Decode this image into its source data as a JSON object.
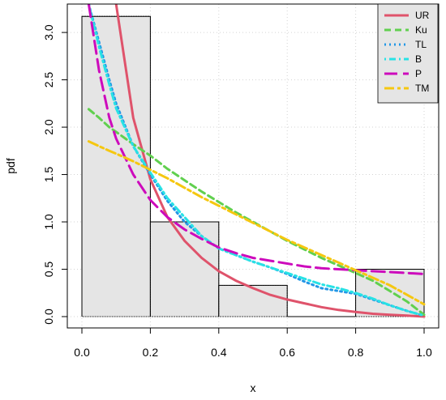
{
  "chart_data": {
    "type": "line",
    "title": "",
    "xlabel": "x",
    "ylabel": "pdf",
    "xlim": [
      0,
      1
    ],
    "ylim": [
      0,
      3.3
    ],
    "x_ticks": [
      0.0,
      0.2,
      0.4,
      0.6,
      0.8,
      1.0
    ],
    "x_tick_labels": [
      "0.0",
      "0.2",
      "0.4",
      "0.6",
      "0.8",
      "1.0"
    ],
    "y_ticks": [
      0.0,
      0.5,
      1.0,
      1.5,
      2.0,
      2.5,
      3.0
    ],
    "y_tick_labels": [
      "0.0",
      "0.5",
      "1.0",
      "1.5",
      "2.0",
      "2.5",
      "3.0"
    ],
    "grid": true,
    "legend_position": "top-right",
    "histogram": {
      "bins": [
        0.0,
        0.2,
        0.4,
        0.6,
        0.8,
        1.0
      ],
      "densities": [
        3.17,
        1.0,
        0.33,
        0.0,
        0.5
      ],
      "fill": "#e5e5e5"
    },
    "x": [
      0.02,
      0.05,
      0.08,
      0.1,
      0.15,
      0.2,
      0.25,
      0.3,
      0.35,
      0.4,
      0.45,
      0.5,
      0.55,
      0.6,
      0.65,
      0.7,
      0.75,
      0.8,
      0.85,
      0.9,
      0.95,
      1.0
    ],
    "series": [
      {
        "name": "UR",
        "color": "#df536b",
        "dash": "solid",
        "values": [
          null,
          null,
          null,
          3.3,
          2.1,
          1.45,
          1.05,
          0.8,
          0.62,
          0.48,
          0.38,
          0.3,
          0.23,
          0.18,
          0.14,
          0.1,
          0.07,
          0.05,
          0.03,
          0.02,
          0.01,
          0.0
        ]
      },
      {
        "name": "Ku",
        "color": "#61d04f",
        "dash": "dashed",
        "values": [
          2.19,
          2.1,
          2.0,
          1.95,
          1.82,
          1.7,
          1.56,
          1.44,
          1.32,
          1.21,
          1.1,
          1.0,
          0.9,
          0.8,
          0.71,
          0.62,
          0.54,
          0.46,
          0.38,
          0.27,
          0.16,
          0.02
        ]
      },
      {
        "name": "TL",
        "color": "#2297e6",
        "dash": "dotted",
        "values": [
          3.3,
          2.9,
          2.5,
          2.25,
          1.8,
          1.5,
          1.22,
          1.0,
          0.85,
          0.72,
          0.65,
          0.58,
          0.52,
          0.45,
          0.37,
          0.3,
          0.27,
          0.24,
          0.18,
          0.12,
          0.06,
          0.01
        ]
      },
      {
        "name": "B",
        "color": "#28e2e5",
        "dash": "dotdash",
        "values": [
          3.3,
          2.85,
          2.45,
          2.2,
          1.8,
          1.52,
          1.25,
          1.05,
          0.85,
          0.72,
          0.65,
          0.58,
          0.52,
          0.46,
          0.4,
          0.34,
          0.3,
          0.25,
          0.19,
          0.12,
          0.06,
          0.01
        ]
      },
      {
        "name": "P",
        "color": "#cd0bbc",
        "dash": "longdash",
        "values": [
          3.3,
          2.6,
          2.1,
          1.88,
          1.5,
          1.23,
          1.05,
          0.92,
          0.82,
          0.73,
          0.67,
          0.62,
          0.59,
          0.56,
          0.53,
          0.51,
          0.5,
          0.49,
          0.48,
          0.47,
          0.46,
          0.45
        ]
      },
      {
        "name": "TM",
        "color": "#f5c710",
        "dash": "twodash",
        "values": [
          1.85,
          1.8,
          1.75,
          1.72,
          1.64,
          1.55,
          1.46,
          1.36,
          1.26,
          1.17,
          1.08,
          0.99,
          0.9,
          0.81,
          0.73,
          0.65,
          0.57,
          0.49,
          0.41,
          0.33,
          0.23,
          0.13
        ]
      }
    ]
  }
}
